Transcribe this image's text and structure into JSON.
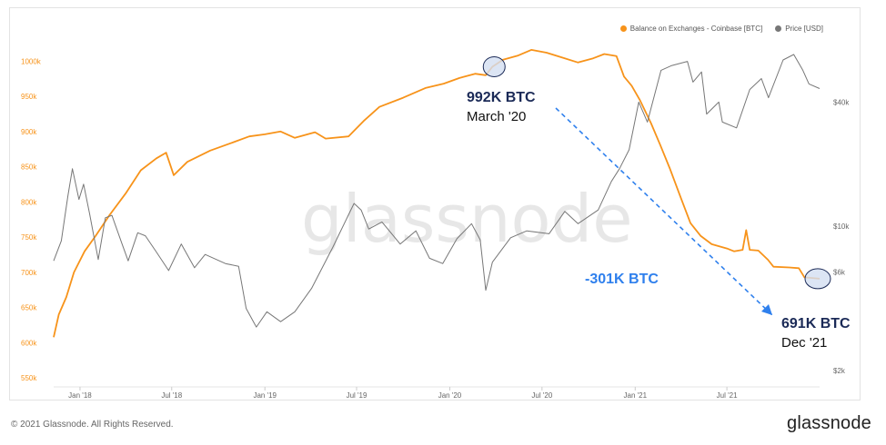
{
  "legend": {
    "balance_label": "Balance on Exchanges - Coinbase [BTC]",
    "price_label": "Price [USD]",
    "balance_color": "#f7931a",
    "price_color": "#777777"
  },
  "watermark": "glassnode",
  "footer": {
    "copyright": "© 2021 Glassnode. All Rights Reserved.",
    "brand": "glassnode"
  },
  "annotations": {
    "march_value": "992K BTC",
    "march_date": "March '20",
    "dec_value": "691K BTC",
    "dec_date": "Dec '21",
    "change": "-301K BTC"
  },
  "colors": {
    "annotation_navy": "#1b2a57",
    "change_blue": "#2f80ed",
    "marker_fill": "#d3def1"
  },
  "chart_data": {
    "type": "line",
    "x_tick_labels": [
      "Jan '18",
      "Jul '18",
      "Jan '19",
      "Jul '19",
      "Jan '20",
      "Jul '20",
      "Jan '21",
      "Jul '21"
    ],
    "x_range": [
      "2017-11-10",
      "2021-12-31"
    ],
    "left_axis": {
      "unit": "BTC",
      "ticks": [
        550000,
        600000,
        650000,
        700000,
        750000,
        800000,
        850000,
        900000,
        950000,
        1000000
      ],
      "tick_labels": [
        "550k",
        "600k",
        "650k",
        "700k",
        "750k",
        "800k",
        "850k",
        "900k",
        "950k",
        "1000k"
      ],
      "ylim": [
        540000,
        1030000
      ]
    },
    "right_axis": {
      "unit": "USD",
      "scale": "log",
      "ticks": [
        2000,
        6000,
        10000,
        40000
      ],
      "tick_labels": [
        "$2k",
        "$6k",
        "$10k",
        "$40k"
      ]
    },
    "series": [
      {
        "name": "Balance on Exchanges - Coinbase [BTC]",
        "axis": "left",
        "color": "#f7931a",
        "points": [
          [
            "2017-11-10",
            608000
          ],
          [
            "2017-11-20",
            640000
          ],
          [
            "2017-12-05",
            665000
          ],
          [
            "2017-12-20",
            700000
          ],
          [
            "2018-01-10",
            730000
          ],
          [
            "2018-02-01",
            752000
          ],
          [
            "2018-03-01",
            782000
          ],
          [
            "2018-04-01",
            812000
          ],
          [
            "2018-05-01",
            845000
          ],
          [
            "2018-06-01",
            862000
          ],
          [
            "2018-06-20",
            870000
          ],
          [
            "2018-07-05",
            838000
          ],
          [
            "2018-08-01",
            857000
          ],
          [
            "2018-09-15",
            873000
          ],
          [
            "2018-11-01",
            885000
          ],
          [
            "2018-12-01",
            893000
          ],
          [
            "2019-01-01",
            896000
          ],
          [
            "2019-02-01",
            900000
          ],
          [
            "2019-03-01",
            891000
          ],
          [
            "2019-04-10",
            899000
          ],
          [
            "2019-05-01",
            890000
          ],
          [
            "2019-06-15",
            893000
          ],
          [
            "2019-07-15",
            915000
          ],
          [
            "2019-08-15",
            935000
          ],
          [
            "2019-10-01",
            948000
          ],
          [
            "2019-11-15",
            962000
          ],
          [
            "2019-12-20",
            968000
          ],
          [
            "2020-01-20",
            976000
          ],
          [
            "2020-02-20",
            982000
          ],
          [
            "2020-03-12",
            980000
          ],
          [
            "2020-03-25",
            992000
          ],
          [
            "2020-04-15",
            1002000
          ],
          [
            "2020-05-15",
            1008000
          ],
          [
            "2020-06-10",
            1016000
          ],
          [
            "2020-07-10",
            1012000
          ],
          [
            "2020-08-10",
            1005000
          ],
          [
            "2020-09-10",
            998000
          ],
          [
            "2020-10-10",
            1004000
          ],
          [
            "2020-11-01",
            1010000
          ],
          [
            "2020-11-25",
            1007000
          ],
          [
            "2020-12-10",
            978000
          ],
          [
            "2020-12-25",
            965000
          ],
          [
            "2021-01-10",
            945000
          ],
          [
            "2021-02-01",
            912000
          ],
          [
            "2021-02-20",
            880000
          ],
          [
            "2021-03-10",
            848000
          ],
          [
            "2021-04-01",
            806000
          ],
          [
            "2021-04-20",
            770000
          ],
          [
            "2021-05-10",
            752000
          ],
          [
            "2021-06-01",
            740000
          ],
          [
            "2021-07-01",
            734000
          ],
          [
            "2021-07-15",
            730000
          ],
          [
            "2021-08-01",
            732000
          ],
          [
            "2021-08-08",
            760000
          ],
          [
            "2021-08-15",
            732000
          ],
          [
            "2021-09-01",
            731000
          ],
          [
            "2021-09-20",
            718000
          ],
          [
            "2021-10-01",
            708000
          ],
          [
            "2021-11-01",
            707000
          ],
          [
            "2021-11-20",
            706000
          ],
          [
            "2021-12-01",
            693000
          ],
          [
            "2021-12-31",
            691000
          ]
        ]
      },
      {
        "name": "Price [USD]",
        "axis": "right",
        "color": "#777777",
        "points": [
          [
            "2017-11-10",
            6800
          ],
          [
            "2017-11-25",
            8500
          ],
          [
            "2017-12-08",
            14000
          ],
          [
            "2017-12-17",
            19000
          ],
          [
            "2017-12-30",
            13500
          ],
          [
            "2018-01-08",
            16000
          ],
          [
            "2018-01-20",
            11500
          ],
          [
            "2018-02-06",
            6900
          ],
          [
            "2018-02-20",
            11000
          ],
          [
            "2018-03-05",
            11300
          ],
          [
            "2018-03-25",
            8200
          ],
          [
            "2018-04-06",
            6800
          ],
          [
            "2018-04-25",
            9300
          ],
          [
            "2018-05-10",
            9000
          ],
          [
            "2018-06-01",
            7500
          ],
          [
            "2018-06-25",
            6100
          ],
          [
            "2018-07-20",
            8200
          ],
          [
            "2018-08-15",
            6300
          ],
          [
            "2018-09-05",
            7300
          ],
          [
            "2018-10-15",
            6600
          ],
          [
            "2018-11-10",
            6400
          ],
          [
            "2018-11-25",
            4000
          ],
          [
            "2018-12-15",
            3250
          ],
          [
            "2019-01-05",
            3850
          ],
          [
            "2019-02-01",
            3450
          ],
          [
            "2019-03-01",
            3850
          ],
          [
            "2019-04-03",
            5000
          ],
          [
            "2019-05-15",
            7900
          ],
          [
            "2019-06-26",
            12900
          ],
          [
            "2019-07-10",
            12000
          ],
          [
            "2019-07-25",
            9700
          ],
          [
            "2019-08-20",
            10500
          ],
          [
            "2019-09-25",
            8200
          ],
          [
            "2019-10-26",
            9500
          ],
          [
            "2019-11-22",
            7000
          ],
          [
            "2019-12-18",
            6600
          ],
          [
            "2020-01-15",
            8700
          ],
          [
            "2020-02-13",
            10300
          ],
          [
            "2020-03-01",
            8600
          ],
          [
            "2020-03-12",
            4900
          ],
          [
            "2020-03-25",
            6700
          ],
          [
            "2020-04-30",
            8800
          ],
          [
            "2020-06-01",
            9500
          ],
          [
            "2020-07-15",
            9200
          ],
          [
            "2020-08-15",
            11800
          ],
          [
            "2020-09-10",
            10300
          ],
          [
            "2020-10-20",
            12000
          ],
          [
            "2020-11-15",
            16500
          ],
          [
            "2020-12-01",
            19000
          ],
          [
            "2020-12-20",
            23500
          ],
          [
            "2021-01-08",
            40000
          ],
          [
            "2021-01-25",
            32000
          ],
          [
            "2021-02-21",
            57000
          ],
          [
            "2021-03-13",
            60000
          ],
          [
            "2021-04-14",
            63000
          ],
          [
            "2021-04-25",
            50000
          ],
          [
            "2021-05-12",
            56000
          ],
          [
            "2021-05-22",
            35000
          ],
          [
            "2021-06-15",
            40000
          ],
          [
            "2021-06-22",
            32000
          ],
          [
            "2021-07-20",
            30000
          ],
          [
            "2021-08-15",
            46000
          ],
          [
            "2021-09-07",
            52000
          ],
          [
            "2021-09-21",
            42000
          ],
          [
            "2021-10-20",
            64000
          ],
          [
            "2021-11-10",
            68000
          ],
          [
            "2021-11-28",
            57000
          ],
          [
            "2021-12-10",
            49000
          ],
          [
            "2021-12-31",
            46500
          ]
        ]
      }
    ]
  }
}
